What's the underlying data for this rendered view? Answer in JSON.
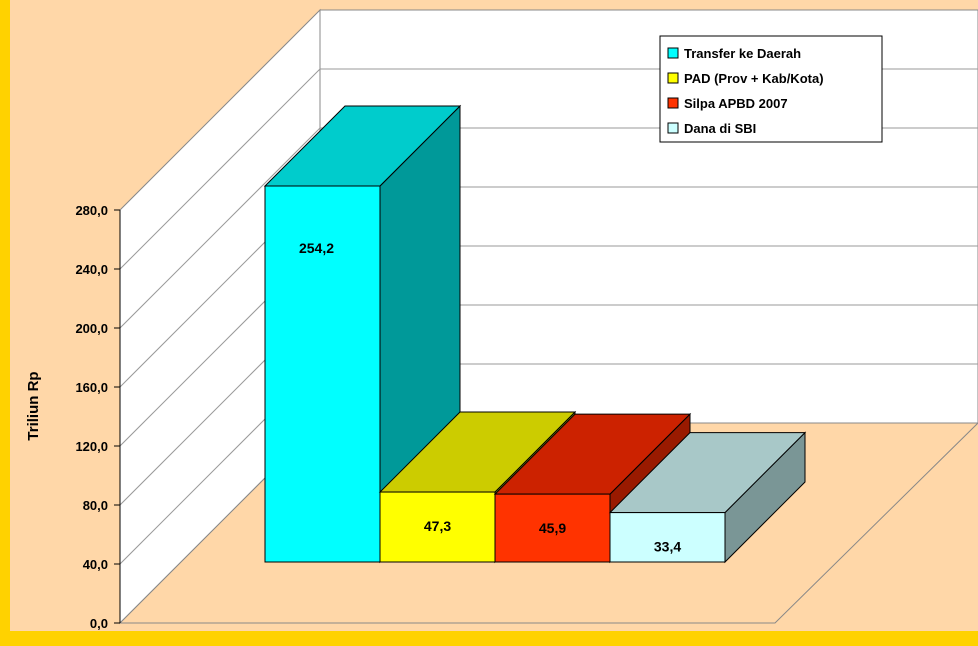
{
  "chart_data": {
    "type": "bar",
    "title": "",
    "xlabel": "",
    "ylabel": "Triliun Rp",
    "ylim": [
      0,
      280
    ],
    "y_ticks": [
      "0,0",
      "40,0",
      "80,0",
      "120,0",
      "160,0",
      "200,0",
      "240,0",
      "280,0"
    ],
    "grid": true,
    "legend_position": "top-right",
    "categories": [
      "Transfer ke Daerah",
      "PAD (Prov + Kab/Kota)",
      "Silpa APBD 2007",
      "Dana di SBI"
    ],
    "values": [
      254.2,
      47.3,
      45.9,
      33.4
    ],
    "value_labels": [
      "254,2",
      "47,3",
      "45,9",
      "33,4"
    ],
    "series": [
      {
        "name": "Transfer ke Daerah",
        "value": 254.2,
        "label": "254,2",
        "front": "#00ffff",
        "top": "#00cccc",
        "side": "#009999"
      },
      {
        "name": "PAD (Prov + Kab/Kota)",
        "value": 47.3,
        "label": "47,3",
        "front": "#ffff00",
        "top": "#cccc00",
        "side": "#999900"
      },
      {
        "name": "Silpa APBD 2007",
        "value": 45.9,
        "label": "45,9",
        "front": "#ff3300",
        "top": "#cc2200",
        "side": "#991a00"
      },
      {
        "name": "Dana di SBI",
        "value": 33.4,
        "label": "33,4",
        "front": "#ccffff",
        "top": "#a8c8c8",
        "side": "#7a9696"
      }
    ],
    "colors": {
      "frame": "#ffd200",
      "floor": "#ffd7a8",
      "wall": "#ffffff",
      "gridline": "#999999"
    }
  }
}
